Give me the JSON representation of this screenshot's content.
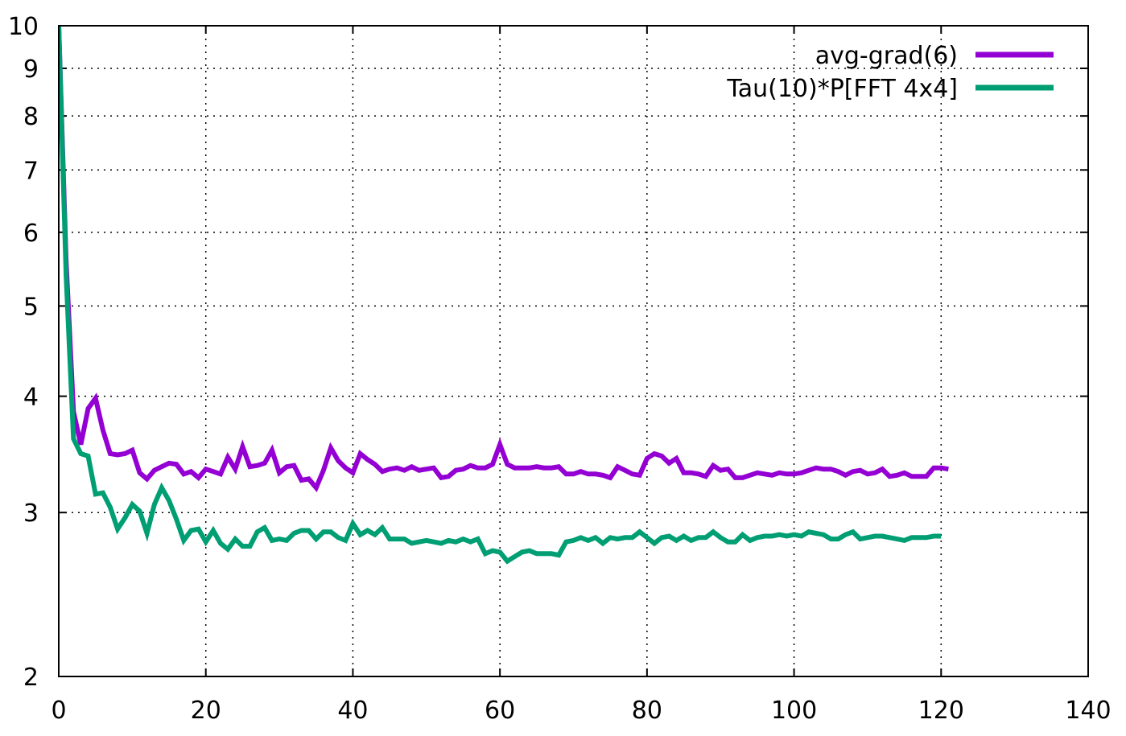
{
  "chart_data": {
    "type": "line",
    "title": "",
    "xlabel": "",
    "ylabel": "",
    "xlim": [
      0,
      140
    ],
    "ylim": [
      2,
      10
    ],
    "yscale": "log",
    "grid": true,
    "legend_position": "top-right",
    "xticks": [
      0,
      20,
      40,
      60,
      80,
      100,
      120,
      140
    ],
    "yticks": [
      2,
      3,
      4,
      5,
      6,
      7,
      8,
      9,
      10
    ],
    "series": [
      {
        "name": "avg-grad(6)",
        "color": "#9400d3",
        "x": [
          0,
          1,
          2,
          3,
          4,
          5,
          6,
          7,
          8,
          9,
          10,
          11,
          12,
          13,
          14,
          15,
          16,
          17,
          18,
          19,
          20,
          21,
          22,
          23,
          24,
          25,
          26,
          27,
          28,
          29,
          30,
          31,
          32,
          33,
          34,
          35,
          36,
          37,
          38,
          39,
          40,
          41,
          42,
          43,
          44,
          45,
          46,
          47,
          48,
          49,
          50,
          51,
          52,
          53,
          54,
          55,
          56,
          57,
          58,
          59,
          60,
          61,
          62,
          63,
          64,
          65,
          66,
          67,
          68,
          69,
          70,
          71,
          72,
          73,
          74,
          75,
          76,
          77,
          78,
          79,
          80,
          81,
          82,
          83,
          84,
          85,
          86,
          87,
          88,
          89,
          90,
          91,
          92,
          93,
          94,
          95,
          96,
          97,
          98,
          99,
          100,
          101,
          102,
          103,
          104,
          105,
          106,
          107,
          108,
          109,
          110,
          111,
          112,
          113,
          114,
          115,
          116,
          117,
          118,
          119,
          120,
          121
        ],
        "y": [
          10,
          5.6,
          3.85,
          3.55,
          3.88,
          3.98,
          3.68,
          3.47,
          3.46,
          3.47,
          3.5,
          3.31,
          3.26,
          3.33,
          3.36,
          3.39,
          3.38,
          3.3,
          3.32,
          3.27,
          3.34,
          3.32,
          3.3,
          3.44,
          3.34,
          3.53,
          3.36,
          3.37,
          3.39,
          3.5,
          3.31,
          3.36,
          3.37,
          3.25,
          3.26,
          3.19,
          3.33,
          3.52,
          3.41,
          3.35,
          3.31,
          3.47,
          3.42,
          3.38,
          3.32,
          3.34,
          3.35,
          3.33,
          3.36,
          3.33,
          3.34,
          3.35,
          3.27,
          3.28,
          3.33,
          3.34,
          3.37,
          3.35,
          3.35,
          3.38,
          3.55,
          3.38,
          3.35,
          3.35,
          3.35,
          3.36,
          3.35,
          3.35,
          3.36,
          3.3,
          3.3,
          3.32,
          3.3,
          3.3,
          3.29,
          3.27,
          3.36,
          3.33,
          3.3,
          3.29,
          3.43,
          3.47,
          3.45,
          3.39,
          3.43,
          3.31,
          3.31,
          3.3,
          3.28,
          3.37,
          3.33,
          3.34,
          3.27,
          3.27,
          3.29,
          3.31,
          3.3,
          3.29,
          3.31,
          3.3,
          3.3,
          3.31,
          3.33,
          3.35,
          3.34,
          3.34,
          3.32,
          3.29,
          3.32,
          3.33,
          3.3,
          3.31,
          3.34,
          3.28,
          3.29,
          3.31,
          3.28,
          3.28,
          3.28,
          3.35,
          3.35,
          3.34
        ]
      },
      {
        "name": "Tau(10)*P[FFT 4x4]",
        "color": "#009e73",
        "x": [
          0,
          1,
          2,
          3,
          4,
          5,
          6,
          7,
          8,
          9,
          10,
          11,
          12,
          13,
          14,
          15,
          16,
          17,
          18,
          19,
          20,
          21,
          22,
          23,
          24,
          25,
          26,
          27,
          28,
          29,
          30,
          31,
          32,
          33,
          34,
          35,
          36,
          37,
          38,
          39,
          40,
          41,
          42,
          43,
          44,
          45,
          46,
          47,
          48,
          49,
          50,
          51,
          52,
          53,
          54,
          55,
          56,
          57,
          58,
          59,
          60,
          61,
          62,
          63,
          64,
          65,
          66,
          67,
          68,
          69,
          70,
          71,
          72,
          73,
          74,
          75,
          76,
          77,
          78,
          79,
          80,
          81,
          82,
          83,
          84,
          85,
          86,
          87,
          88,
          89,
          90,
          91,
          92,
          93,
          94,
          95,
          96,
          97,
          98,
          99,
          100,
          101,
          102,
          103,
          104,
          105,
          106,
          107,
          108,
          109,
          110,
          111,
          112,
          113,
          114,
          115,
          116,
          117,
          118,
          119,
          120
        ],
        "y": [
          10,
          5.4,
          3.6,
          3.47,
          3.45,
          3.14,
          3.15,
          3.04,
          2.88,
          2.96,
          3.06,
          3.01,
          2.85,
          3.06,
          3.19,
          3.09,
          2.95,
          2.8,
          2.87,
          2.88,
          2.79,
          2.87,
          2.78,
          2.74,
          2.81,
          2.76,
          2.76,
          2.86,
          2.89,
          2.8,
          2.81,
          2.8,
          2.85,
          2.87,
          2.87,
          2.81,
          2.86,
          2.86,
          2.82,
          2.8,
          2.92,
          2.84,
          2.87,
          2.84,
          2.89,
          2.81,
          2.81,
          2.81,
          2.78,
          2.79,
          2.8,
          2.79,
          2.78,
          2.8,
          2.79,
          2.81,
          2.79,
          2.81,
          2.71,
          2.73,
          2.72,
          2.66,
          2.69,
          2.72,
          2.73,
          2.71,
          2.71,
          2.71,
          2.7,
          2.79,
          2.8,
          2.82,
          2.8,
          2.82,
          2.78,
          2.82,
          2.81,
          2.82,
          2.82,
          2.86,
          2.82,
          2.78,
          2.82,
          2.83,
          2.8,
          2.83,
          2.8,
          2.82,
          2.82,
          2.86,
          2.82,
          2.79,
          2.79,
          2.84,
          2.8,
          2.82,
          2.83,
          2.83,
          2.84,
          2.83,
          2.84,
          2.83,
          2.86,
          2.85,
          2.84,
          2.81,
          2.81,
          2.84,
          2.86,
          2.81,
          2.82,
          2.83,
          2.83,
          2.82,
          2.81,
          2.8,
          2.82,
          2.82,
          2.82,
          2.83,
          2.83
        ]
      }
    ]
  }
}
